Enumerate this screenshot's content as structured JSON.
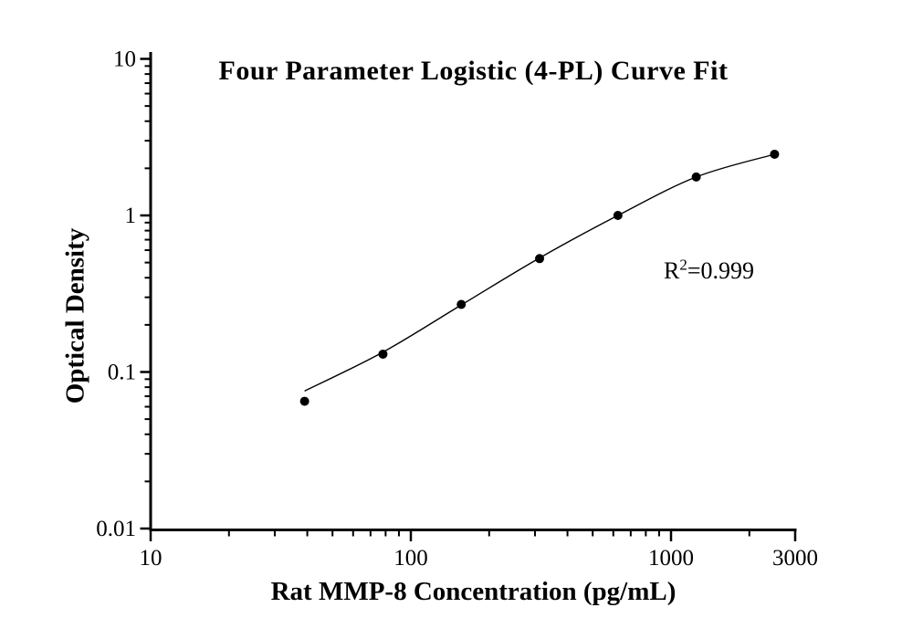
{
  "page": {
    "background_color": "#ffffff",
    "ink_color": "#000000"
  },
  "chart_data": {
    "type": "scatter",
    "title": "Four Parameter Logistic (4-PL) Curve Fit",
    "xlabel": "Rat MMP-8 Concentration (pg/mL)",
    "ylabel": "Optical Density",
    "x_scale": "log",
    "y_scale": "log",
    "x_range": [
      10,
      3000
    ],
    "y_range": [
      0.01,
      10
    ],
    "grid": false,
    "legend": "none",
    "x_major_ticks": [
      {
        "value": 10,
        "label": "10"
      },
      {
        "value": 100,
        "label": "100"
      },
      {
        "value": 1000,
        "label": "1000"
      },
      {
        "value": 3000,
        "label": "3000"
      }
    ],
    "x_minor_ticks": [
      20,
      30,
      40,
      50,
      60,
      70,
      80,
      90,
      200,
      300,
      400,
      500,
      600,
      700,
      800,
      900,
      2000
    ],
    "y_major_ticks": [
      {
        "value": 10,
        "label": "10"
      },
      {
        "value": 1,
        "label": "1"
      },
      {
        "value": 0.1,
        "label": "0.1"
      },
      {
        "value": 0.01,
        "label": "0.01"
      }
    ],
    "y_minor_ticks": [
      0.02,
      0.03,
      0.04,
      0.05,
      0.06,
      0.07,
      0.08,
      0.09,
      0.2,
      0.3,
      0.4,
      0.5,
      0.6,
      0.7,
      0.8,
      0.9,
      2,
      3,
      4,
      5,
      6,
      7,
      8,
      9
    ],
    "series": [
      {
        "name": "standard-data-points",
        "type": "scatter",
        "marker": "filled-circle",
        "marker_radius_px": 5,
        "color": "#000000",
        "points": [
          {
            "x": 39.06,
            "y": 0.065
          },
          {
            "x": 78.13,
            "y": 0.13
          },
          {
            "x": 156.25,
            "y": 0.27
          },
          {
            "x": 312.5,
            "y": 0.53
          },
          {
            "x": 625,
            "y": 1.0
          },
          {
            "x": 1250,
            "y": 1.76
          },
          {
            "x": 2500,
            "y": 2.46
          }
        ]
      },
      {
        "name": "4pl-fit-curve",
        "type": "line",
        "color": "#000000",
        "points": [
          {
            "x": 39.06,
            "y": 0.0755
          },
          {
            "x": 78.13,
            "y": 0.134
          },
          {
            "x": 156.25,
            "y": 0.268
          },
          {
            "x": 312.5,
            "y": 0.535
          },
          {
            "x": 625,
            "y": 1.0
          },
          {
            "x": 1250,
            "y": 1.76
          },
          {
            "x": 2500,
            "y": 2.46
          }
        ]
      }
    ],
    "annotation": {
      "base": "R",
      "superscript": "2",
      "rest": "=0.999",
      "text": "R²=0.999"
    },
    "r_squared": 0.999
  }
}
